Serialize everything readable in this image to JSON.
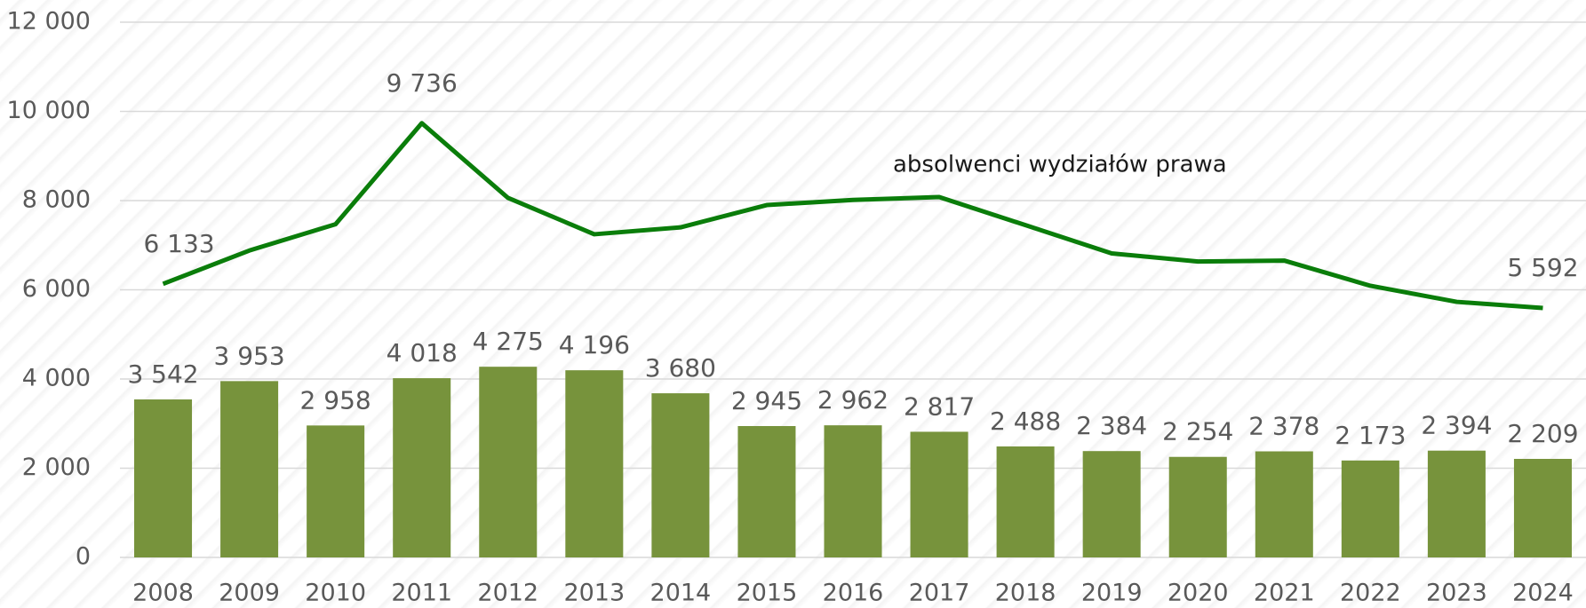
{
  "chart_data": {
    "type": "bar-line",
    "categories": [
      "2008",
      "2009",
      "2010",
      "2011",
      "2012",
      "2013",
      "2014",
      "2015",
      "2016",
      "2017",
      "2018",
      "2019",
      "2020",
      "2021",
      "2022",
      "2023",
      "2024"
    ],
    "series": [
      {
        "type": "bar",
        "color": "#77933c",
        "values": [
          3542,
          3953,
          2958,
          4018,
          4275,
          4196,
          3680,
          2945,
          2962,
          2817,
          2488,
          2384,
          2254,
          2378,
          2173,
          2394,
          2209
        ],
        "value_labels": [
          "3 542",
          "3 953",
          "2 958",
          "4 018",
          "4 275",
          "4 196",
          "3 680",
          "2 945",
          "2 962",
          "2 817",
          "2 488",
          "2 384",
          "2 254",
          "2 378",
          "2 173",
          "2 394",
          "2 209"
        ]
      },
      {
        "type": "line",
        "name": "absolwenci wydziałów prawa",
        "color": "#0a7d0a",
        "values": [
          6133,
          6880,
          7470,
          9736,
          8060,
          7245,
          7400,
          7900,
          8015,
          8080,
          7450,
          6815,
          6635,
          6655,
          6090,
          5730,
          5592
        ],
        "value_labels": [
          "6 133",
          null,
          null,
          "9 736",
          null,
          null,
          null,
          null,
          null,
          null,
          null,
          null,
          null,
          null,
          null,
          null,
          "5 592"
        ]
      }
    ],
    "ylim": [
      0,
      12000
    ],
    "yticks": [
      0,
      {
        "value": 2000,
        "label": "2 000"
      },
      {
        "value": 4000,
        "label": "4 000"
      },
      {
        "value": 6000,
        "label": "6 000"
      },
      {
        "value": 8000,
        "label": "8 000"
      },
      {
        "value": 10000,
        "label": "10 000"
      },
      {
        "value": 12000,
        "label": "12 000"
      }
    ],
    "grid": true
  }
}
